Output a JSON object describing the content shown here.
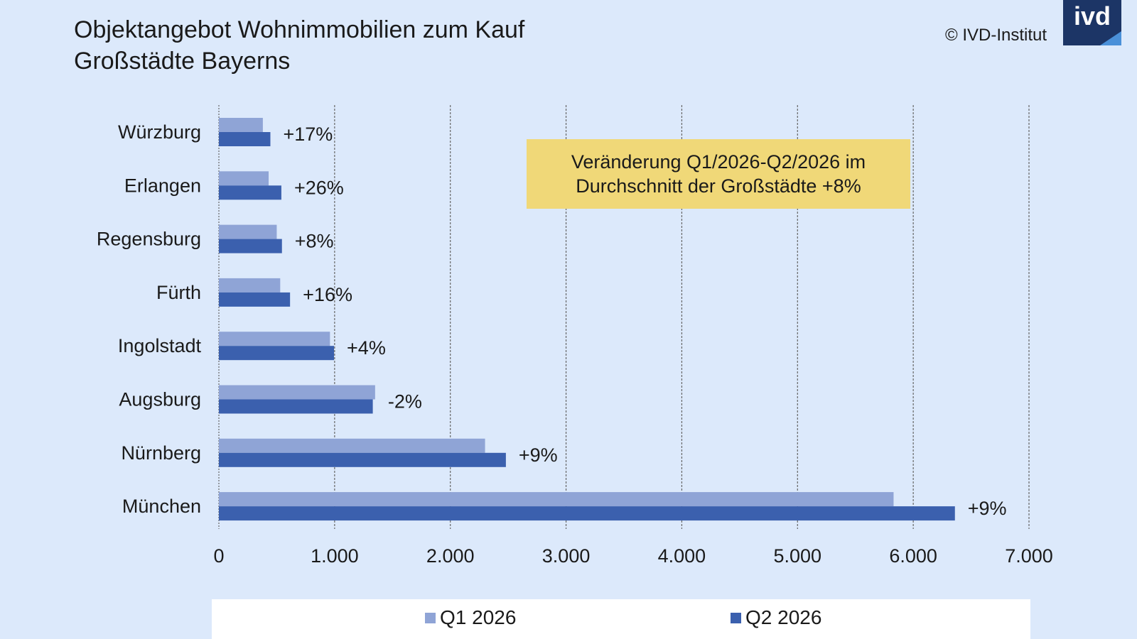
{
  "header": {
    "title_line1": "Objektangebot Wohnimmobilien zum Kauf",
    "title_line2": "Großstädte Bayerns",
    "copyright": "© IVD-Institut",
    "logo_text": "ivd"
  },
  "note": {
    "text": "Veränderung Q1/2026-Q2/2026 im Durchschnitt der Großstädte +8%"
  },
  "legend": {
    "q1_label": "Q1 2026",
    "q2_label": "Q2 2026"
  },
  "colors": {
    "q1": "#8fa4d6",
    "q2": "#3b60ae",
    "note_bg": "#f0d878",
    "background": "#dce9fb",
    "logo_bg": "#1c3566"
  },
  "chart_data": {
    "type": "bar",
    "orientation": "horizontal",
    "categories": [
      "Würzburg",
      "Erlangen",
      "Regensburg",
      "Fürth",
      "Ingolstadt",
      "Augsburg",
      "Nürnberg",
      "München"
    ],
    "series": [
      {
        "name": "Q1 2026",
        "values": [
          380,
          430,
          500,
          530,
          960,
          1350,
          2300,
          5830
        ]
      },
      {
        "name": "Q2 2026",
        "values": [
          445,
          540,
          545,
          615,
          995,
          1330,
          2480,
          6360
        ]
      }
    ],
    "change_labels": [
      "+17%",
      "+26%",
      "+8%",
      "+16%",
      "+4%",
      "-2%",
      "+9%",
      "+9%"
    ],
    "xlim": [
      0,
      7000
    ],
    "xticks": [
      0,
      1000,
      2000,
      3000,
      4000,
      5000,
      6000,
      7000
    ],
    "xtick_labels": [
      "0",
      "1.000",
      "2.000",
      "3.000",
      "4.000",
      "5.000",
      "6.000",
      "7.000"
    ],
    "grid": "vertical-dashed",
    "legend_position": "bottom"
  }
}
